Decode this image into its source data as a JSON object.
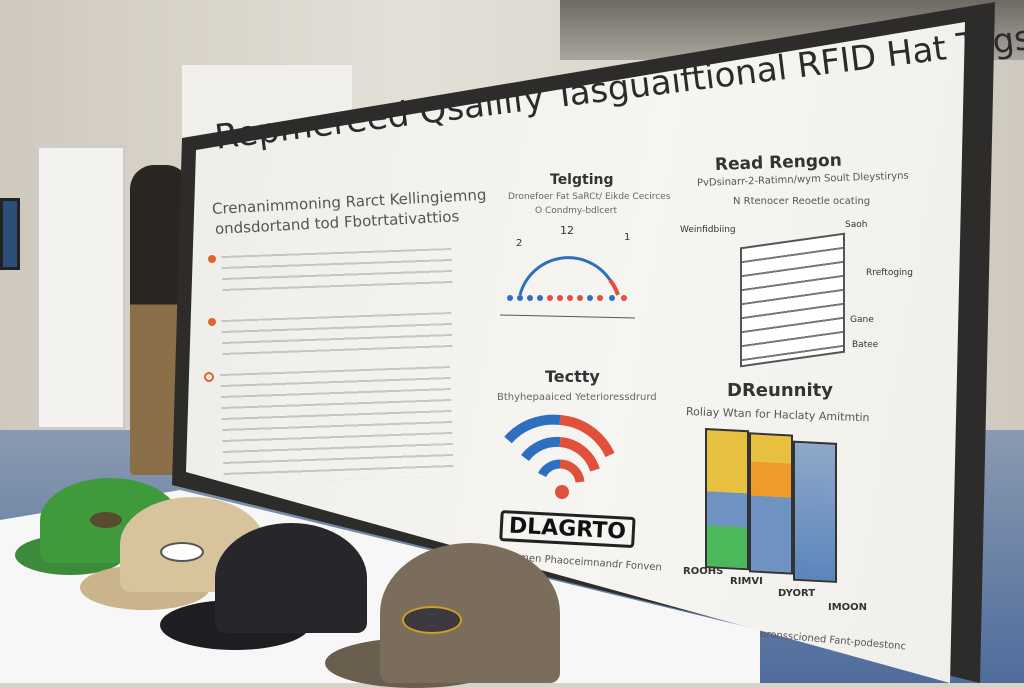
{
  "sign": {
    "title_line1": "Repmereed Qsallify Tasguaiftional RFID Hat Tags",
    "left_heading1": "Crenanimmoning Rarct Kellingiemng",
    "left_heading2": "ondsdortand tod Fbotrtativattios",
    "telemetry": {
      "title": "Telgting",
      "subtitle": "Dronefoer Fat SaRCt/ Eikde Cecirces",
      "subtitle2": "O Condmy-bdlcert",
      "gauge_top": "12",
      "gauge_left": "2",
      "gauge_right": "1"
    },
    "read_range": {
      "title": "Read Rengon",
      "subtitle": "PvDsinarr-2-Ratimn/wym Soult Dleystiryns",
      "subtitle2": "N Rtenocer Reoetle ocating",
      "labels": [
        "Weinfidbiing",
        "Saoh",
        "Rreftoging",
        "Gane",
        "Batee"
      ]
    },
    "tecty": {
      "title": "Tectty",
      "subtitle": "Bthyhepaaiced Yeterioressdrurd",
      "logo": "DLAGRTO",
      "caption": "Borts Bmen Phaoceimnandr Fonven"
    },
    "drenity": {
      "title": "DReunnity",
      "subtitle": "Roliay Wtan for Haclaty Amitmtin",
      "columns": [
        "ROOHS",
        "RIMVI",
        "DYORT",
        "IMOON"
      ],
      "footer": "Mlorttare shetfite csoronsscioned Fant-podestonc"
    }
  },
  "colors": {
    "wifi_blue": "#2f6fc0",
    "wifi_red": "#e0503a",
    "bar_yellow": "#e8c040",
    "bar_orange": "#ef9a2a",
    "bar_blue": "#6f93c2",
    "bar_green": "#4cb85a"
  }
}
